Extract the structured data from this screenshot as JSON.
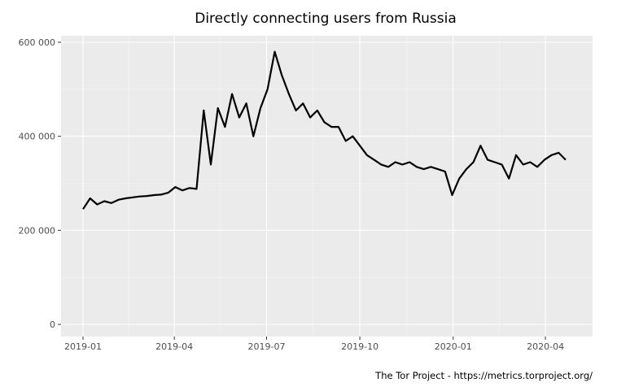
{
  "chart_data": {
    "type": "line",
    "title": "Directly connecting users from Russia",
    "xlabel": "",
    "ylabel": "",
    "caption": "The Tor Project - https://metrics.torproject.org/",
    "x_ticks": [
      "2019-01",
      "2019-04",
      "2019-07",
      "2019-10",
      "2020-01",
      "2020-04"
    ],
    "y_ticks": [
      "0",
      "200 000",
      "400 000",
      "600 000"
    ],
    "ylim": [
      0,
      600000
    ],
    "xlim": [
      "2019-01-01",
      "2020-04-25"
    ],
    "grid": true,
    "background": "#ebebeb",
    "line_color": "#000000",
    "series": [
      {
        "x": [
          "2019-01-01",
          "2019-01-08",
          "2019-01-15",
          "2019-01-22",
          "2019-01-29",
          "2019-02-05",
          "2019-02-12",
          "2019-02-19",
          "2019-02-26",
          "2019-03-05",
          "2019-03-12",
          "2019-03-19",
          "2019-03-26",
          "2019-04-02",
          "2019-04-09",
          "2019-04-16",
          "2019-04-23",
          "2019-04-30",
          "2019-05-07",
          "2019-05-14",
          "2019-05-21",
          "2019-05-28",
          "2019-06-04",
          "2019-06-11",
          "2019-06-18",
          "2019-06-25",
          "2019-07-02",
          "2019-07-09",
          "2019-07-16",
          "2019-07-23",
          "2019-07-30",
          "2019-08-06",
          "2019-08-13",
          "2019-08-20",
          "2019-08-27",
          "2019-09-03",
          "2019-09-10",
          "2019-09-17",
          "2019-09-24",
          "2019-10-01",
          "2019-10-08",
          "2019-10-15",
          "2019-10-22",
          "2019-10-29",
          "2019-11-05",
          "2019-11-12",
          "2019-11-19",
          "2019-11-26",
          "2019-12-03",
          "2019-12-10",
          "2019-12-17",
          "2019-12-24",
          "2019-12-31",
          "2020-01-07",
          "2020-01-14",
          "2020-01-21",
          "2020-01-28",
          "2020-02-04",
          "2020-02-11",
          "2020-02-18",
          "2020-02-25",
          "2020-03-03",
          "2020-03-10",
          "2020-03-17",
          "2020-03-24",
          "2020-03-31",
          "2020-04-07",
          "2020-04-14",
          "2020-04-21"
        ],
        "values": [
          245000,
          268000,
          255000,
          262000,
          258000,
          265000,
          268000,
          270000,
          272000,
          273000,
          275000,
          276000,
          280000,
          292000,
          285000,
          290000,
          288000,
          455000,
          340000,
          460000,
          420000,
          490000,
          440000,
          470000,
          400000,
          460000,
          500000,
          580000,
          530000,
          490000,
          455000,
          470000,
          440000,
          455000,
          430000,
          420000,
          420000,
          390000,
          400000,
          380000,
          360000,
          350000,
          340000,
          335000,
          345000,
          340000,
          345000,
          335000,
          330000,
          335000,
          330000,
          325000,
          275000,
          310000,
          330000,
          345000,
          380000,
          350000,
          345000,
          340000,
          310000,
          360000,
          340000,
          345000,
          335000,
          350000,
          360000,
          365000,
          350000
        ]
      }
    ]
  }
}
